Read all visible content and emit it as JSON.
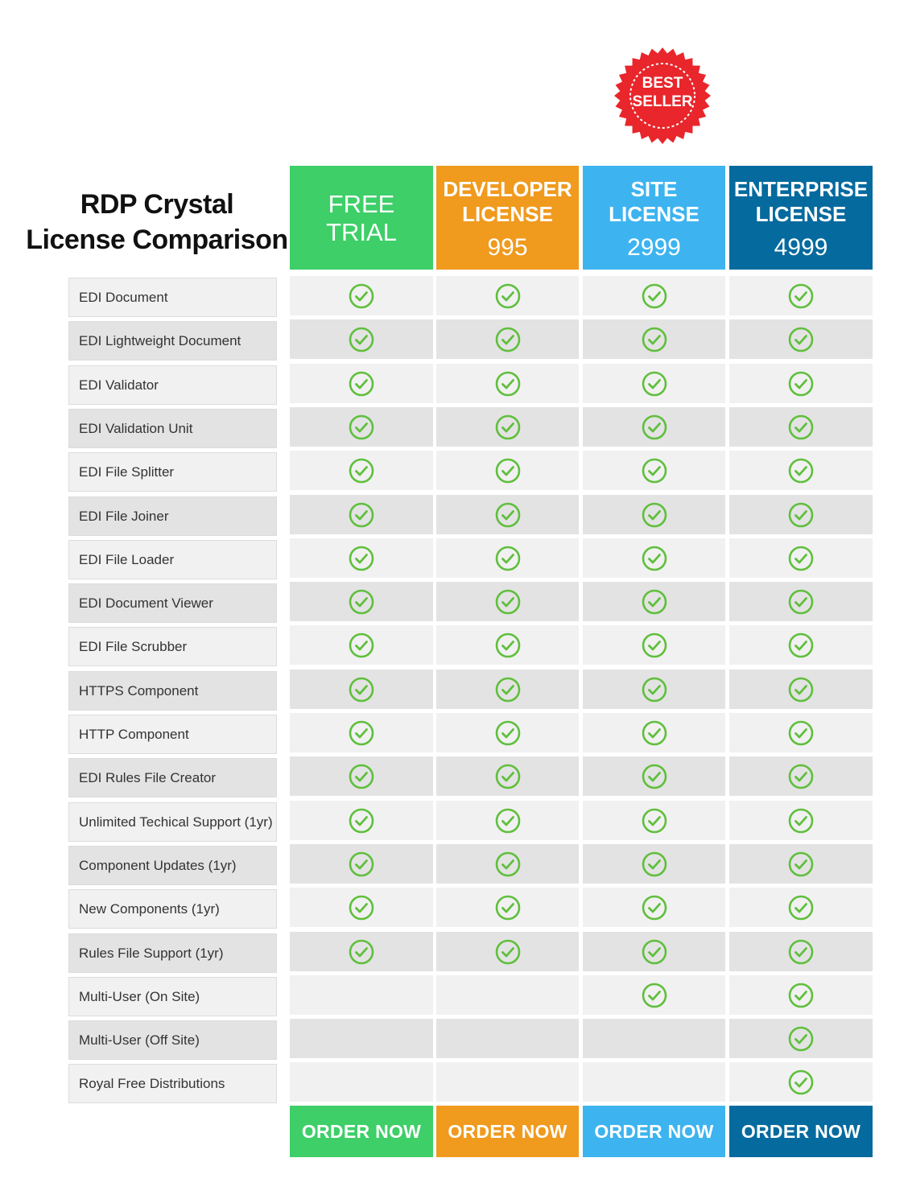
{
  "title": {
    "line1": "RDP Crystal",
    "line2": "License Comparison"
  },
  "badge": {
    "line1": "BEST",
    "line2": "SELLER",
    "color": "#e8262b"
  },
  "check_icon": "check-circle-icon",
  "check_color": "#5fbf3c",
  "plans": [
    {
      "id": "free",
      "name_line1": "FREE",
      "name_line2": "TRIAL",
      "price": "",
      "color": "#3ecf68",
      "order_label": "ORDER NOW"
    },
    {
      "id": "developer",
      "name_line1": "DEVELOPER",
      "name_line2": "LICENSE",
      "price": "995",
      "color": "#f09a1e",
      "order_label": "ORDER NOW"
    },
    {
      "id": "site",
      "name_line1": "SITE",
      "name_line2": "LICENSE",
      "price": "2999",
      "color": "#3db4ef",
      "order_label": "ORDER NOW"
    },
    {
      "id": "enterprise",
      "name_line1": "ENTERPRISE",
      "name_line2": "LICENSE",
      "price": "4999",
      "color": "#056a9e",
      "order_label": "ORDER NOW"
    }
  ],
  "features": [
    {
      "label": "EDI Document",
      "included": [
        true,
        true,
        true,
        true
      ]
    },
    {
      "label": "EDI Lightweight Document",
      "included": [
        true,
        true,
        true,
        true
      ]
    },
    {
      "label": "EDI Validator",
      "included": [
        true,
        true,
        true,
        true
      ]
    },
    {
      "label": "EDI Validation Unit",
      "included": [
        true,
        true,
        true,
        true
      ]
    },
    {
      "label": "EDI File Splitter",
      "included": [
        true,
        true,
        true,
        true
      ]
    },
    {
      "label": "EDI File Joiner",
      "included": [
        true,
        true,
        true,
        true
      ]
    },
    {
      "label": "EDI File Loader",
      "included": [
        true,
        true,
        true,
        true
      ]
    },
    {
      "label": "EDI Document Viewer",
      "included": [
        true,
        true,
        true,
        true
      ]
    },
    {
      "label": "EDI File Scrubber",
      "included": [
        true,
        true,
        true,
        true
      ]
    },
    {
      "label": "HTTPS Component",
      "included": [
        true,
        true,
        true,
        true
      ]
    },
    {
      "label": "HTTP Component",
      "included": [
        true,
        true,
        true,
        true
      ]
    },
    {
      "label": "EDI Rules File Creator",
      "included": [
        true,
        true,
        true,
        true
      ]
    },
    {
      "label": "Unlimited Techical Support (1yr)",
      "included": [
        true,
        true,
        true,
        true
      ]
    },
    {
      "label": "Component Updates (1yr)",
      "included": [
        true,
        true,
        true,
        true
      ]
    },
    {
      "label": "New Components (1yr)",
      "included": [
        true,
        true,
        true,
        true
      ]
    },
    {
      "label": "Rules File Support (1yr)",
      "included": [
        true,
        true,
        true,
        true
      ]
    },
    {
      "label": "Multi-User (On Site)",
      "included": [
        false,
        false,
        true,
        true
      ]
    },
    {
      "label": "Multi-User (Off Site)",
      "included": [
        false,
        false,
        false,
        true
      ]
    },
    {
      "label": "Royal Free Distributions",
      "included": [
        false,
        false,
        false,
        true
      ]
    }
  ]
}
